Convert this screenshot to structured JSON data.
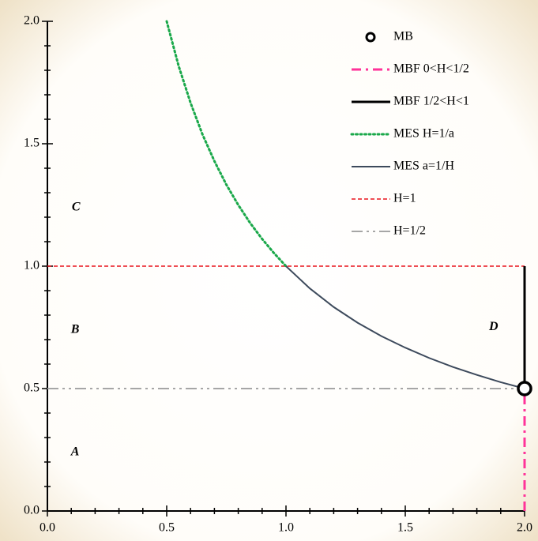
{
  "chart_data": {
    "type": "line",
    "xlim": [
      0,
      2
    ],
    "ylim": [
      0,
      2
    ],
    "xticks": [
      {
        "value": 0,
        "label": "0.0"
      },
      {
        "value": 0.5,
        "label": "0.5"
      },
      {
        "value": 1,
        "label": "1.0"
      },
      {
        "value": 1.5,
        "label": "1.5"
      },
      {
        "value": 2,
        "label": "2.0"
      }
    ],
    "yticks": [
      {
        "value": 0,
        "label": "0.0"
      },
      {
        "value": 0.5,
        "label": "0.5"
      },
      {
        "value": 1,
        "label": "1.0"
      },
      {
        "value": 1.5,
        "label": "1.5"
      },
      {
        "value": 2,
        "label": "2.0"
      }
    ],
    "xminorticks": [
      0.1,
      0.2,
      0.3,
      0.4,
      0.6,
      0.7,
      0.8,
      0.9,
      1.1,
      1.2,
      1.3,
      1.4,
      1.6,
      1.7,
      1.8,
      1.9
    ],
    "yminorticks": [
      0.1,
      0.2,
      0.3,
      0.4,
      0.6,
      0.7,
      0.8,
      0.9,
      1.1,
      1.2,
      1.3,
      1.4,
      1.6,
      1.7,
      1.8,
      1.9
    ],
    "grid": false,
    "legend": "upper right",
    "series": [
      {
        "name": "MB",
        "color": "#000000",
        "style": "circle-open",
        "x": [
          2
        ],
        "values": [
          0.5
        ]
      },
      {
        "name": "MBF 0<H<1/2",
        "color": "#ff3399",
        "style": "dash-dot",
        "x": [
          2,
          2
        ],
        "values": [
          0,
          0.5
        ]
      },
      {
        "name": "MBF 1/2<H<1",
        "color": "#000000",
        "style": "solid",
        "x": [
          2,
          2
        ],
        "values": [
          0.5,
          1
        ]
      },
      {
        "name": "MES H=1/a",
        "color": "#1aa84a",
        "style": "dotted",
        "x": [
          0.5,
          0.55,
          0.6,
          0.65,
          0.7,
          0.75,
          0.8,
          0.85,
          0.9,
          0.95,
          1.0
        ],
        "values": [
          2,
          1.818,
          1.667,
          1.538,
          1.429,
          1.333,
          1.25,
          1.176,
          1.111,
          1.053,
          1
        ]
      },
      {
        "name": "MES a=1/H",
        "color": "#3d4a5c",
        "style": "solid-thin",
        "x": [
          1.0,
          1.1,
          1.2,
          1.3,
          1.4,
          1.5,
          1.6,
          1.7,
          1.8,
          1.9,
          2.0
        ],
        "values": [
          1,
          0.909,
          0.833,
          0.769,
          0.714,
          0.667,
          0.625,
          0.588,
          0.556,
          0.526,
          0.5
        ]
      },
      {
        "name": "H=1",
        "color": "#e8141c",
        "style": "dashed",
        "x": [
          0,
          2
        ],
        "values": [
          1,
          1
        ]
      },
      {
        "name": "H=1/2",
        "color": "#a6a6a6",
        "style": "dash-dot-dot",
        "x": [
          0,
          2
        ],
        "values": [
          0.5,
          0.5
        ]
      }
    ],
    "annotations": [
      "A",
      "B",
      "C",
      "D"
    ]
  }
}
